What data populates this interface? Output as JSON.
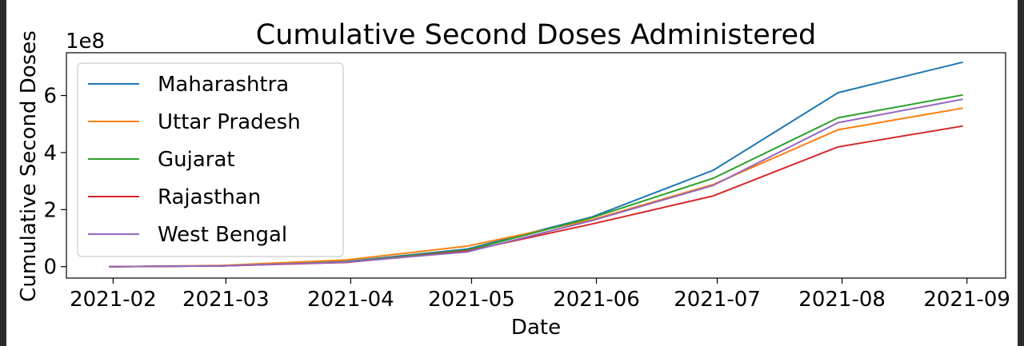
{
  "chart_data": {
    "type": "line",
    "title": "Cumulative Second Doses Administered",
    "xlabel": "Date",
    "ylabel": "Cumulative Second Doses",
    "y_offset_label": "1e8",
    "y_scale_factor": 100000000,
    "x_ticks": [
      "2021-02",
      "2021-03",
      "2021-04",
      "2021-05",
      "2021-06",
      "2021-07",
      "2021-08",
      "2021-09"
    ],
    "y_ticks": [
      0,
      2,
      4,
      6
    ],
    "ylim": [
      -0.4,
      7.5
    ],
    "grid": false,
    "legend_position": "upper-left",
    "x": [
      "2021-01-31",
      "2021-02-28",
      "2021-03-31",
      "2021-04-30",
      "2021-05-31",
      "2021-06-30",
      "2021-07-31",
      "2021-08-31"
    ],
    "series": [
      {
        "name": "Maharashtra",
        "color": "#1f77b4",
        "values": [
          0.0,
          0.03,
          0.18,
          0.62,
          1.75,
          3.38,
          6.1,
          7.17
        ]
      },
      {
        "name": "Uttar Pradesh",
        "color": "#ff7f0e",
        "values": [
          0.0,
          0.04,
          0.24,
          0.72,
          1.65,
          2.88,
          4.8,
          5.56
        ]
      },
      {
        "name": "Gujarat",
        "color": "#2ca02c",
        "values": [
          0.0,
          0.03,
          0.17,
          0.58,
          1.72,
          3.1,
          5.22,
          6.02
        ]
      },
      {
        "name": "Rajasthan",
        "color": "#d62728",
        "values": [
          0.0,
          0.03,
          0.15,
          0.55,
          1.5,
          2.48,
          4.2,
          4.93
        ]
      },
      {
        "name": "West Bengal",
        "color": "#9467bd",
        "values": [
          0.0,
          0.03,
          0.16,
          0.52,
          1.62,
          2.85,
          5.05,
          5.87
        ]
      }
    ]
  }
}
